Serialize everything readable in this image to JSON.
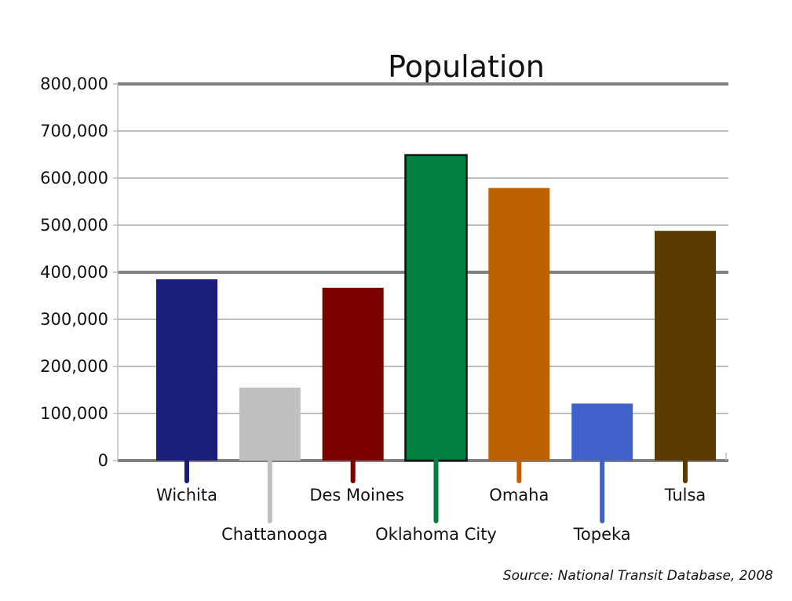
{
  "chart_data": {
    "type": "bar",
    "title": "Population",
    "categories": [
      "Wichita",
      "Chattanooga",
      "Des Moines",
      "Oklahoma City",
      "Omaha",
      "Topeka",
      "Tulsa"
    ],
    "values": [
      385000,
      155000,
      367000,
      649000,
      579000,
      121000,
      488000
    ],
    "colors": [
      "#1b1d7c",
      "#c0c0c0",
      "#7b0000",
      "#007f3f",
      "#bf6000",
      "#4062c8",
      "#5b3b00"
    ],
    "ylim": [
      0,
      800000
    ],
    "yticks": [
      0,
      100000,
      200000,
      300000,
      400000,
      500000,
      600000,
      700000,
      800000
    ],
    "ytick_labels": [
      "0",
      "100,000",
      "200,000",
      "300,000",
      "400,000",
      "500,000",
      "600,000",
      "700,000",
      "800,000"
    ],
    "xlabel": "",
    "ylabel": "",
    "grid": true,
    "source": "Source: National Transit Database, 2008"
  }
}
